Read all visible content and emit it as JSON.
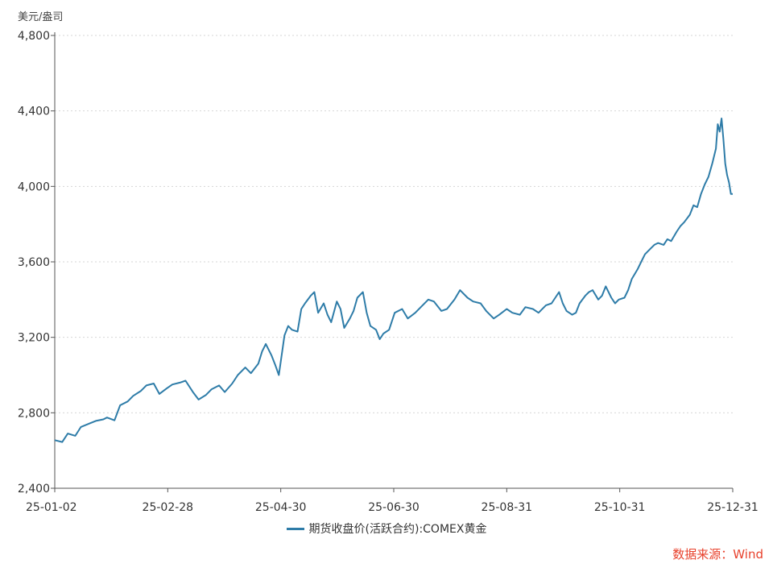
{
  "unit": "美元/盎司",
  "source": "数据来源：Wind",
  "chart_data": {
    "type": "line",
    "ylim": [
      2400,
      4800
    ],
    "yticks": [
      2400,
      2800,
      3200,
      3600,
      4000,
      4400,
      4800
    ],
    "yticklabels": [
      "2,400",
      "2,800",
      "3,200",
      "3,600",
      "4,000",
      "4,400",
      "4,800"
    ],
    "xticklabels": [
      "25-01-02",
      "25-02-28",
      "25-04-30",
      "25-06-30",
      "25-08-31",
      "25-10-31",
      "25-12-31"
    ],
    "xrange": [
      "2025-01-02",
      "2025-12-31"
    ],
    "grid": "horizontal dotted",
    "legend_position": "bottom",
    "series": [
      {
        "name": "期货收盘价(活跃合约):COMEX黄金",
        "color": "#2e7ca8",
        "points": [
          [
            "2025-01-02",
            2655
          ],
          [
            "2025-01-06",
            2645
          ],
          [
            "2025-01-09",
            2690
          ],
          [
            "2025-01-13",
            2678
          ],
          [
            "2025-01-16",
            2725
          ],
          [
            "2025-01-21",
            2745
          ],
          [
            "2025-01-24",
            2757
          ],
          [
            "2025-01-28",
            2765
          ],
          [
            "2025-01-30",
            2775
          ],
          [
            "2025-02-03",
            2760
          ],
          [
            "2025-02-06",
            2840
          ],
          [
            "2025-02-10",
            2860
          ],
          [
            "2025-02-13",
            2890
          ],
          [
            "2025-02-17",
            2915
          ],
          [
            "2025-02-20",
            2945
          ],
          [
            "2025-02-24",
            2955
          ],
          [
            "2025-02-27",
            2900
          ],
          [
            "2025-03-03",
            2930
          ],
          [
            "2025-03-06",
            2950
          ],
          [
            "2025-03-10",
            2960
          ],
          [
            "2025-03-13",
            2970
          ],
          [
            "2025-03-17",
            2910
          ],
          [
            "2025-03-20",
            2870
          ],
          [
            "2025-03-24",
            2895
          ],
          [
            "2025-03-27",
            2925
          ],
          [
            "2025-03-31",
            2945
          ],
          [
            "2025-04-03",
            2910
          ],
          [
            "2025-04-07",
            2955
          ],
          [
            "2025-04-10",
            3000
          ],
          [
            "2025-04-14",
            3040
          ],
          [
            "2025-04-17",
            3010
          ],
          [
            "2025-04-21",
            3060
          ],
          [
            "2025-04-23",
            3125
          ],
          [
            "2025-04-25",
            3165
          ],
          [
            "2025-04-28",
            3105
          ],
          [
            "2025-04-30",
            3055
          ],
          [
            "2025-05-02",
            3000
          ],
          [
            "2025-05-05",
            3210
          ],
          [
            "2025-05-07",
            3260
          ],
          [
            "2025-05-09",
            3240
          ],
          [
            "2025-05-12",
            3230
          ],
          [
            "2025-05-14",
            3350
          ],
          [
            "2025-05-16",
            3380
          ],
          [
            "2025-05-19",
            3420
          ],
          [
            "2025-05-21",
            3440
          ],
          [
            "2025-05-23",
            3330
          ],
          [
            "2025-05-26",
            3380
          ],
          [
            "2025-05-28",
            3320
          ],
          [
            "2025-05-30",
            3280
          ],
          [
            "2025-06-02",
            3390
          ],
          [
            "2025-06-04",
            3350
          ],
          [
            "2025-06-06",
            3250
          ],
          [
            "2025-06-09",
            3300
          ],
          [
            "2025-06-11",
            3340
          ],
          [
            "2025-06-13",
            3410
          ],
          [
            "2025-06-16",
            3440
          ],
          [
            "2025-06-18",
            3330
          ],
          [
            "2025-06-20",
            3260
          ],
          [
            "2025-06-23",
            3240
          ],
          [
            "2025-06-25",
            3190
          ],
          [
            "2025-06-27",
            3220
          ],
          [
            "2025-06-30",
            3240
          ],
          [
            "2025-07-03",
            3330
          ],
          [
            "2025-07-07",
            3350
          ],
          [
            "2025-07-10",
            3300
          ],
          [
            "2025-07-14",
            3330
          ],
          [
            "2025-07-17",
            3360
          ],
          [
            "2025-07-21",
            3400
          ],
          [
            "2025-07-24",
            3390
          ],
          [
            "2025-07-28",
            3340
          ],
          [
            "2025-07-31",
            3350
          ],
          [
            "2025-08-04",
            3400
          ],
          [
            "2025-08-07",
            3450
          ],
          [
            "2025-08-11",
            3410
          ],
          [
            "2025-08-14",
            3390
          ],
          [
            "2025-08-18",
            3380
          ],
          [
            "2025-08-21",
            3340
          ],
          [
            "2025-08-25",
            3300
          ],
          [
            "2025-08-28",
            3320
          ],
          [
            "2025-09-01",
            3350
          ],
          [
            "2025-09-04",
            3330
          ],
          [
            "2025-09-08",
            3320
          ],
          [
            "2025-09-11",
            3360
          ],
          [
            "2025-09-15",
            3350
          ],
          [
            "2025-09-18",
            3330
          ],
          [
            "2025-09-22",
            3370
          ],
          [
            "2025-09-25",
            3380
          ],
          [
            "2025-09-29",
            3440
          ],
          [
            "2025-10-01",
            3380
          ],
          [
            "2025-10-03",
            3340
          ],
          [
            "2025-10-06",
            3320
          ],
          [
            "2025-10-08",
            3330
          ],
          [
            "2025-10-10",
            3380
          ],
          [
            "2025-10-13",
            3420
          ],
          [
            "2025-10-15",
            3440
          ],
          [
            "2025-10-17",
            3450
          ],
          [
            "2025-10-20",
            3400
          ],
          [
            "2025-10-22",
            3420
          ],
          [
            "2025-10-24",
            3470
          ],
          [
            "2025-10-27",
            3410
          ],
          [
            "2025-10-29",
            3380
          ],
          [
            "2025-10-31",
            3400
          ],
          [
            "2025-11-03",
            3410
          ],
          [
            "2025-11-05",
            3450
          ],
          [
            "2025-11-07",
            3510
          ],
          [
            "2025-11-10",
            3560
          ],
          [
            "2025-11-12",
            3600
          ],
          [
            "2025-11-14",
            3640
          ],
          [
            "2025-11-17",
            3670
          ],
          [
            "2025-11-19",
            3690
          ],
          [
            "2025-11-21",
            3700
          ],
          [
            "2025-11-24",
            3690
          ],
          [
            "2025-11-26",
            3720
          ],
          [
            "2025-11-28",
            3710
          ],
          [
            "2025-12-01",
            3760
          ],
          [
            "2025-12-03",
            3790
          ],
          [
            "2025-12-05",
            3810
          ],
          [
            "2025-12-08",
            3850
          ],
          [
            "2025-12-10",
            3900
          ],
          [
            "2025-12-12",
            3890
          ],
          [
            "2025-12-14",
            3960
          ],
          [
            "2025-12-16",
            4010
          ],
          [
            "2025-12-18",
            4050
          ],
          [
            "2025-12-20",
            4120
          ],
          [
            "2025-12-22",
            4200
          ],
          [
            "2025-12-23",
            4330
          ],
          [
            "2025-12-24",
            4290
          ],
          [
            "2025-12-25",
            4360
          ],
          [
            "2025-12-26",
            4250
          ],
          [
            "2025-12-27",
            4120
          ],
          [
            "2025-12-28",
            4060
          ],
          [
            "2025-12-29",
            4020
          ],
          [
            "2025-12-30",
            3960
          ],
          [
            "2025-12-31",
            3960
          ]
        ]
      }
    ]
  }
}
